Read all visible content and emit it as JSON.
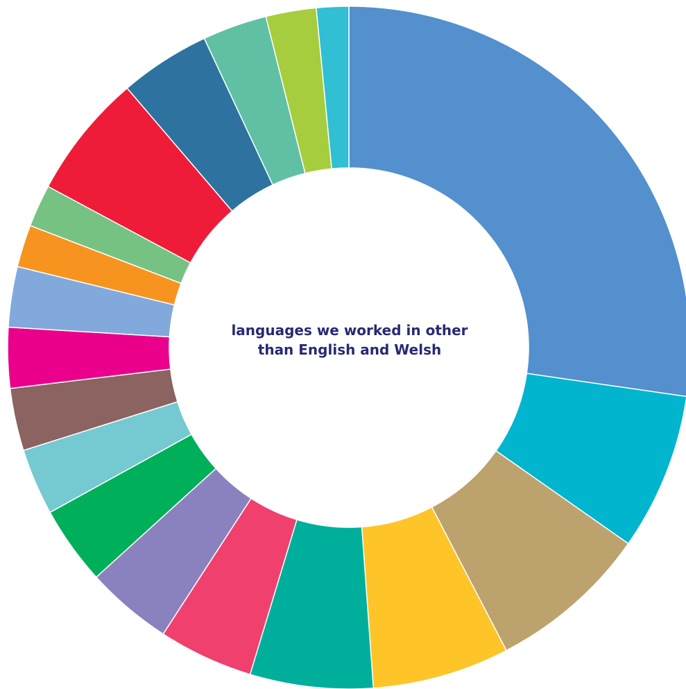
{
  "chart_data": {
    "type": "donut",
    "center_label": {
      "line1": "languages we worked in other",
      "line2": "than English and Welsh"
    },
    "start": "top",
    "direction": "clockwise",
    "slices": [
      {
        "value": 28.6,
        "color": "#5390CD"
      },
      {
        "value": 7.8,
        "color": "#00B5CD"
      },
      {
        "value": 8.0,
        "color": "#BCA26D"
      },
      {
        "value": 6.8,
        "color": "#FFC427"
      },
      {
        "value": 6.1,
        "color": "#00AF9B"
      },
      {
        "value": 4.7,
        "color": "#F0406E"
      },
      {
        "value": 4.3,
        "color": "#8982BE"
      },
      {
        "value": 3.9,
        "color": "#00AF5A"
      },
      {
        "value": 3.3,
        "color": "#75C9D0"
      },
      {
        "value": 3.1,
        "color": "#8B6360"
      },
      {
        "value": 3.0,
        "color": "#EB008B"
      },
      {
        "value": 3.0,
        "color": "#82A9DB"
      },
      {
        "value": 2.1,
        "color": "#F7941F"
      },
      {
        "value": 2.1,
        "color": "#75C282"
      },
      {
        "value": 6.2,
        "color": "#EE1C38"
      },
      {
        "value": 4.5,
        "color": "#2E73A0"
      },
      {
        "value": 3.2,
        "color": "#60C0A3"
      },
      {
        "value": 2.5,
        "color": "#A6CD3D"
      },
      {
        "value": 1.6,
        "color": "#31BFD4"
      }
    ]
  }
}
